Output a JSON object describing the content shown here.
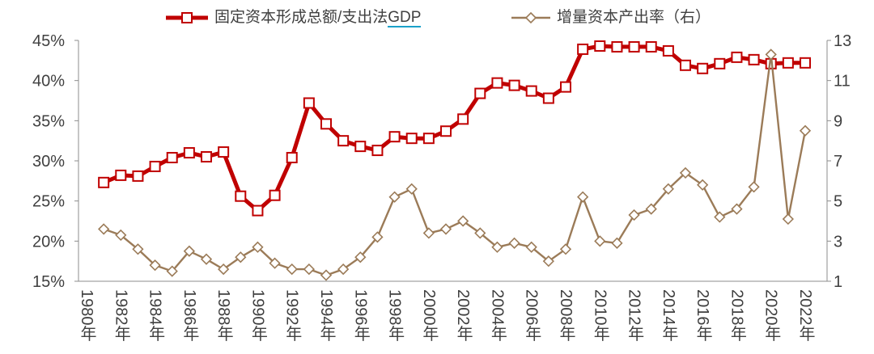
{
  "chart_data": {
    "type": "line",
    "legend_position": "top",
    "grid": false,
    "x": [
      1981,
      1982,
      1983,
      1984,
      1985,
      1986,
      1987,
      1988,
      1989,
      1990,
      1991,
      1992,
      1993,
      1994,
      1995,
      1996,
      1997,
      1998,
      1999,
      2000,
      2001,
      2002,
      2003,
      2004,
      2005,
      2006,
      2007,
      2008,
      2009,
      2010,
      2011,
      2012,
      2013,
      2014,
      2015,
      2016,
      2017,
      2018,
      2019,
      2020,
      2021,
      2022
    ],
    "x_tick_values": [
      1980,
      1982,
      1984,
      1986,
      1988,
      1990,
      1992,
      1994,
      1996,
      1998,
      2000,
      2002,
      2004,
      2006,
      2008,
      2010,
      2012,
      2014,
      2016,
      2018,
      2020,
      2022
    ],
    "x_tick_labels": [
      "1980年",
      "1982年",
      "1984年",
      "1986年",
      "1988年",
      "1990年",
      "1992年",
      "1994年",
      "1996年",
      "1998年",
      "2000年",
      "2002年",
      "2004年",
      "2006年",
      "2008年",
      "2010年",
      "2012年",
      "2014年",
      "2016年",
      "2018年",
      "2020年",
      "2022年"
    ],
    "y_left": {
      "min": 15,
      "max": 45,
      "ticks": [
        15,
        20,
        25,
        30,
        35,
        40,
        45
      ],
      "tick_labels": [
        "15%",
        "20%",
        "25%",
        "30%",
        "35%",
        "40%",
        "45%"
      ]
    },
    "y_right": {
      "min": 1,
      "max": 13,
      "ticks": [
        1,
        3,
        5,
        7,
        9,
        11,
        13
      ],
      "tick_labels": [
        "1",
        "3",
        "5",
        "7",
        "9",
        "11",
        "13"
      ]
    },
    "series": [
      {
        "name": "固定资本形成总额/支出法GDP",
        "y_axis": "left",
        "color": "#C00000",
        "marker": "square",
        "values": [
          27.3,
          28.2,
          28.1,
          29.3,
          30.4,
          31.0,
          30.5,
          31.1,
          25.6,
          23.8,
          25.7,
          30.4,
          37.2,
          34.6,
          32.5,
          31.8,
          31.3,
          33.0,
          32.8,
          32.8,
          33.7,
          35.2,
          38.4,
          39.7,
          39.4,
          38.7,
          37.8,
          39.2,
          43.9,
          44.3,
          44.2,
          44.2,
          44.2,
          43.7,
          41.9,
          41.5,
          42.1,
          42.9,
          42.6,
          42.1,
          42.2,
          42.2
        ]
      },
      {
        "name": "增量资本产出率（右）",
        "y_axis": "right",
        "color": "#9B7B58",
        "marker": "diamond",
        "values": [
          3.6,
          3.3,
          2.6,
          1.8,
          1.5,
          2.5,
          2.1,
          1.6,
          2.2,
          2.7,
          1.9,
          1.6,
          1.6,
          1.3,
          1.6,
          2.2,
          3.2,
          5.2,
          5.6,
          3.4,
          3.6,
          4.0,
          3.4,
          2.7,
          2.9,
          2.7,
          2.0,
          2.6,
          5.2,
          3.0,
          2.9,
          4.3,
          4.6,
          5.6,
          6.4,
          5.8,
          4.2,
          4.6,
          5.7,
          12.3,
          4.1,
          8.5
        ]
      }
    ]
  }
}
